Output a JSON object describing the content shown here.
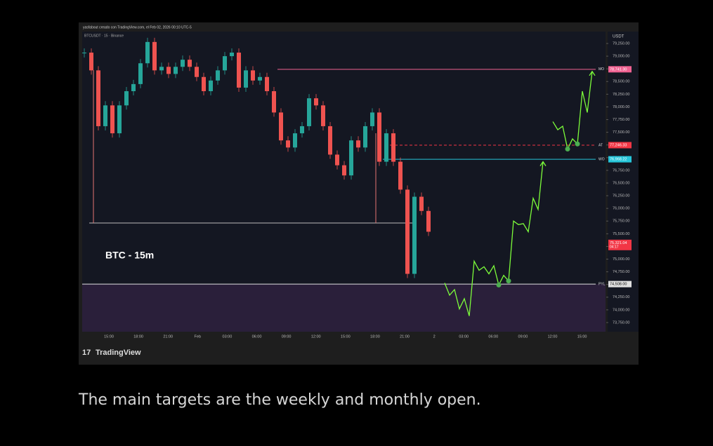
{
  "header": "yasfabout creado con TradingView.com, el Feb 02, 2026 00:10 UTC-5",
  "symbol": "BTCUSDT · 15 · Binance",
  "currency": "USDT",
  "annotation": "BTC - 15m",
  "brand": "TradingView",
  "caption": "The main targets are the weekly and monthly open.",
  "chart_data": {
    "type": "candlestick",
    "categories": [
      "15:00",
      "18:00",
      "21:00",
      "Feb",
      "03:00",
      "06:00",
      "09:00",
      "12:00",
      "15:00",
      "18:00",
      "21:00",
      "2",
      "03:00",
      "06:00",
      "09:00",
      "12:00",
      "15:00"
    ],
    "closes": [
      79070,
      78720,
      77620,
      78030,
      77480,
      78030,
      78310,
      78450,
      78860,
      79280,
      78720,
      78790,
      78650,
      78790,
      78930,
      78790,
      78590,
      78310,
      78520,
      78720,
      79000,
      79070,
      78380,
      78720,
      78520,
      78590,
      78310,
      77890,
      77340,
      77200,
      77480,
      77620,
      78170,
      78030,
      77620,
      77060,
      76850,
      76650,
      77340,
      77200,
      77620,
      77890,
      76920,
      77480,
      76920,
      76370,
      74710,
      76230,
      75950,
      75540
    ],
    "projection": [
      74530,
      74290,
      74400,
      74020,
      74220,
      73880,
      74960,
      74780,
      74850,
      74710,
      74870,
      74490,
      74680,
      74570,
      75750,
      75680,
      75700,
      75540,
      76200,
      75980,
      76920,
      null,
      77710,
      77550,
      77620,
      77170,
      77370,
      77270,
      78310,
      77890,
      78700
    ],
    "levels": [
      {
        "name": "MO",
        "value": 78741.3,
        "label": "78,741.30",
        "color": "#f06292"
      },
      {
        "name": "AT",
        "value": 77246.33,
        "label": "77,246.33",
        "color": "#f23645"
      },
      {
        "name": "WO",
        "value": 76968.22,
        "label": "76,968.22",
        "color": "#26c6da"
      },
      {
        "name": "PYL",
        "value": 74508,
        "label": "74,508.00",
        "color": "#e0e0e0"
      }
    ],
    "current": {
      "value": 75321.04,
      "label": "75,321.04",
      "timer": "04:17",
      "color": "#f23645"
    },
    "up_color": "#26a69a",
    "down_color": "#ef5350",
    "projection_color": "#7cfc3a",
    "ylim": [
      73570,
      79485
    ],
    "yticks": [
      {
        "value": 79250,
        "label": "79,250.00"
      },
      {
        "value": 79000,
        "label": "79,000.00"
      },
      {
        "value": 78750,
        "label": "78,750.00"
      },
      {
        "value": 78500,
        "label": "78,500.00"
      },
      {
        "value": 78250,
        "label": "78,250.00"
      },
      {
        "value": 78000,
        "label": "78,000.00"
      },
      {
        "value": 77750,
        "label": "77,750.00"
      },
      {
        "value": 77500,
        "label": "77,500.00"
      },
      {
        "value": 77250,
        "label": "77,250.00"
      },
      {
        "value": 77000,
        "label": "77,000.00"
      },
      {
        "value": 76750,
        "label": "76,750.00"
      },
      {
        "value": 76500,
        "label": "76,500.00"
      },
      {
        "value": 76250,
        "label": "76,250.00"
      },
      {
        "value": 76000,
        "label": "76,000.00"
      },
      {
        "value": 75750,
        "label": "75,750.00"
      },
      {
        "value": 75500,
        "label": "75,500.00"
      },
      {
        "value": 75250,
        "label": "75,250.00"
      },
      {
        "value": 75000,
        "label": "75,000.00"
      },
      {
        "value": 74750,
        "label": "74,750.00"
      },
      {
        "value": 74500,
        "label": "74,500.00"
      },
      {
        "value": 74250,
        "label": "74,250.00"
      },
      {
        "value": 74000,
        "label": "74,000.00"
      },
      {
        "value": 73750,
        "label": "73,750.00"
      }
    ]
  }
}
